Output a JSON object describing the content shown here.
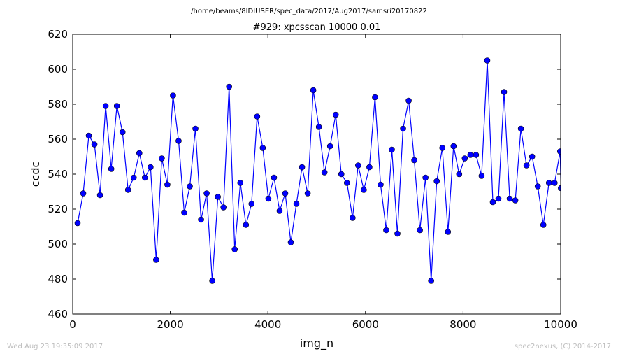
{
  "suptitle": "/home/beams/8IDIUSER/spec_data/2017/Aug2017/samsri20170822",
  "footer": {
    "timestamp": "Wed Aug 23 19:35:09 2017",
    "credit": "spec2nexus, (C) 2014-2017"
  },
  "colors": {
    "series": "#0000ff",
    "axes": "#000000",
    "footer": "#bdbdbd"
  },
  "chart_data": {
    "type": "line",
    "title": "#929: xpcsscan 10000 0.01",
    "xlabel": "img_n",
    "ylabel": "ccdc",
    "xlim": [
      0,
      10000
    ],
    "ylim": [
      460,
      620
    ],
    "xticks": [
      0,
      2000,
      4000,
      6000,
      8000,
      10000
    ],
    "yticks": [
      460,
      480,
      500,
      520,
      540,
      560,
      580,
      600,
      620
    ],
    "grid": false,
    "marker": "circle",
    "series": [
      {
        "x": [
          100,
          215,
          330,
          445,
          560,
          675,
          790,
          905,
          1020,
          1135,
          1250,
          1365,
          1480,
          1595,
          1710,
          1825,
          1940,
          2055,
          2170,
          2285,
          2400,
          2515,
          2630,
          2745,
          2860,
          2975,
          3090,
          3205,
          3320,
          3435,
          3550,
          3665,
          3780,
          3895,
          4010,
          4125,
          4240,
          4355,
          4470,
          4585,
          4700,
          4815,
          4930,
          5045,
          5160,
          5275,
          5390,
          5505,
          5620,
          5735,
          5850,
          5965,
          6080,
          6195,
          6310,
          6425,
          6540,
          6655,
          6770,
          6885,
          7000,
          7115,
          7230,
          7345,
          7460,
          7575,
          7690,
          7805,
          7920,
          8035,
          8150,
          8265,
          8380,
          8495,
          8610,
          8725,
          8840,
          8955,
          9070,
          9185,
          9300,
          9415,
          9530,
          9645,
          9760,
          9875,
          9990,
          10005
        ],
        "y": [
          512,
          529,
          562,
          557,
          528,
          579,
          543,
          579,
          564,
          531,
          538,
          552,
          538,
          544,
          491,
          549,
          534,
          585,
          559,
          518,
          533,
          566,
          514,
          529,
          479,
          527,
          521,
          590,
          497,
          535,
          511,
          523,
          573,
          555,
          526,
          538,
          519,
          529,
          501,
          523,
          544,
          529,
          588,
          567,
          541,
          556,
          574,
          540,
          535,
          515,
          545,
          531,
          544,
          584,
          534,
          508,
          554,
          506,
          566,
          582,
          548,
          508,
          538,
          479,
          536,
          555,
          507,
          556,
          540,
          549,
          551,
          551,
          539,
          605,
          524,
          526,
          587,
          526,
          525,
          566,
          545,
          550,
          533,
          511,
          535,
          535,
          553,
          532
        ]
      }
    ]
  }
}
